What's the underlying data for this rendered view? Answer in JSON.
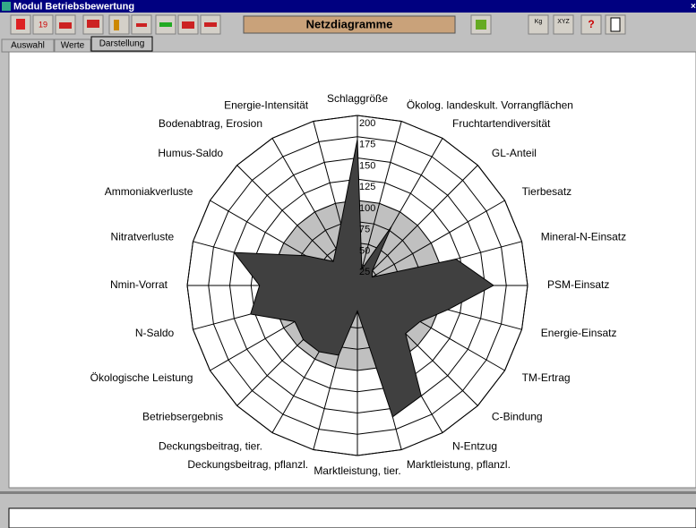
{
  "window": {
    "title": "Modul Betriebsbewertung",
    "toolbar_label": "Netzdiagramme",
    "icon_labels": [
      "19",
      "Kg",
      "XYZ",
      "?"
    ],
    "tabs": [
      "Auswahl",
      "Werte",
      "Darstellung"
    ]
  },
  "chart_data": {
    "type": "radar",
    "categories": [
      "Schlaggröße",
      "Ökolog. landeskult. Vorrangflächen",
      "Fruchtartendiversität",
      "GL-Anteil",
      "Tierbesatz",
      "Mineral-N-Einsatz",
      "PSM-Einsatz",
      "Energie-Einsatz",
      "TM-Ertrag",
      "C-Bindung",
      "N-Entzug",
      "Marktleistung, pflanzl.",
      "Marktleistung, tier.",
      "Deckungsbeitrag, pflanzl.",
      "Deckungsbeitrag, tier.",
      "Betriebsergebnis",
      "Ökologische Leistung",
      "N-Saldo",
      "Nmin-Vorrat",
      "Nitratverluste",
      "Ammoniakverluste",
      "Humus-Saldo",
      "Bodenabtrag, Erosion",
      "Energie-Intensität"
    ],
    "values": [
      172,
      20,
      80,
      25,
      20,
      120,
      160,
      110,
      85,
      80,
      150,
      160,
      30,
      85,
      90,
      90,
      85,
      130,
      115,
      150,
      70,
      40,
      50,
      75
    ],
    "color": "#404040",
    "band_color": "#c0c0c0",
    "band_value": 100,
    "ylim": [
      0,
      200
    ],
    "yticks": [
      25,
      50,
      75,
      100,
      125,
      150,
      175,
      200
    ]
  }
}
